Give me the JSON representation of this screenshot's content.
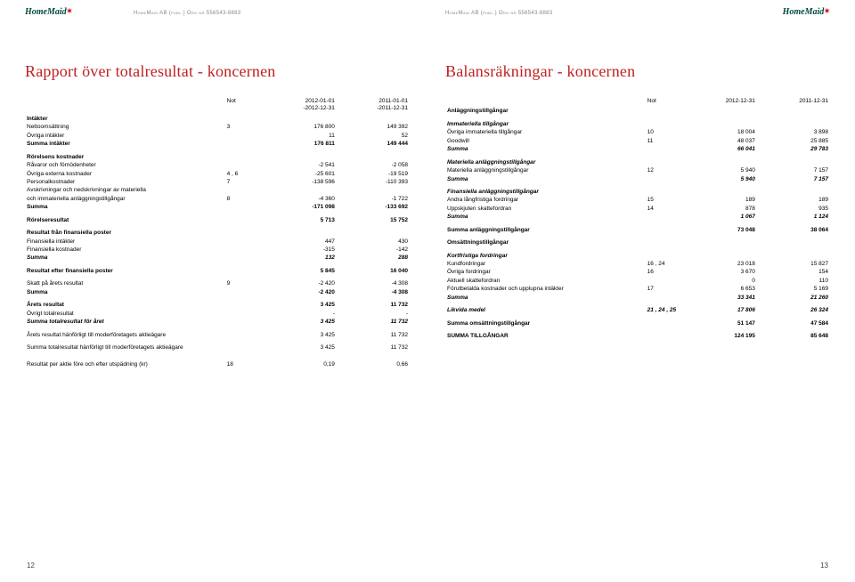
{
  "meta": {
    "company_header": "HomeMaid AB (publ.) Org nr 556543-8883",
    "logo_text": "HomeMaid",
    "page_left_num": "12",
    "page_right_num": "13"
  },
  "colors": {
    "title": "#c02020",
    "logo_green": "#004c3f",
    "logo_x": "#cc0000",
    "runhead": "#888888",
    "text": "#000000",
    "background": "#ffffff"
  },
  "left": {
    "title": "Rapport över totalresultat - koncernen",
    "col_headers": {
      "not": "Not",
      "p1": "2012-01-01\n-2012-12-31",
      "p2": "2011-01-01\n-2011-12-31"
    },
    "rows": [
      {
        "style": "section-head",
        "label": "Intäkter"
      },
      {
        "label": "Nettoomsättning",
        "not": "3",
        "v1": "176 800",
        "v2": "149 392"
      },
      {
        "label": "Övriga intäkter",
        "v1": "11",
        "v2": "52"
      },
      {
        "style": "bold",
        "label": "Summa intäkter",
        "v1": "176 811",
        "v2": "149 444"
      },
      {
        "style": "spacer"
      },
      {
        "style": "section-head",
        "label": "Rörelsens kostnader"
      },
      {
        "label": "Råvaror och förnödenheter",
        "v1": "-2 541",
        "v2": "-2 058"
      },
      {
        "label": "Övriga externa kostnader",
        "not": "4 , 6",
        "v1": "-25 601",
        "v2": "-19 519"
      },
      {
        "label": "Personalkostnader",
        "not": "7",
        "v1": "-138 596",
        "v2": "-110 393"
      },
      {
        "label": "Avskrivningar och nedskrivningar av materiella"
      },
      {
        "label": "och immateriella anläggningstillgångar",
        "not": "8",
        "v1": "-4 360",
        "v2": "-1 722"
      },
      {
        "style": "bold",
        "label": "Summa",
        "v1": "-171 098",
        "v2": "-133 692"
      },
      {
        "style": "spacer"
      },
      {
        "style": "bold",
        "label": "Rörelseresultat",
        "v1": "5 713",
        "v2": "15 752"
      },
      {
        "style": "spacer"
      },
      {
        "style": "section-head",
        "label": "Resultat från finansiella poster"
      },
      {
        "label": "Finansiella intäkter",
        "v1": "447",
        "v2": "430"
      },
      {
        "label": "Finansiella kostnader",
        "v1": "-315",
        "v2": "-142"
      },
      {
        "style": "bolditalic",
        "label": "Summa",
        "v1": "132",
        "v2": "288"
      },
      {
        "style": "spacer"
      },
      {
        "style": "bold",
        "label": "Resultat efter finansiella poster",
        "v1": "5 845",
        "v2": "16 040"
      },
      {
        "style": "spacer"
      },
      {
        "label": "Skatt på årets resultat",
        "not": "9",
        "v1": "-2 420",
        "v2": "-4 308"
      },
      {
        "style": "bold",
        "label": "Summa",
        "v1": "-2 420",
        "v2": "-4 308"
      },
      {
        "style": "spacer"
      },
      {
        "style": "bold",
        "label": "Årets resultat",
        "v1": "3 425",
        "v2": "11 732"
      },
      {
        "label": "Övrigt totalresultat",
        "v1": "-",
        "v2": "-"
      },
      {
        "style": "bolditalic",
        "label": "Summa totalresultat för året",
        "v1": "3 425",
        "v2": "11 732"
      },
      {
        "style": "spacer"
      },
      {
        "label": "Årets resultat hänförligt till moderföretagets aktieägare",
        "v1": "3 425",
        "v2": "11 732"
      },
      {
        "style": "spacer"
      },
      {
        "label": "Summa totalresultat hänförligt till moderföretagets aktieägare",
        "v1": "3 425",
        "v2": "11 732"
      },
      {
        "style": "spacer"
      },
      {
        "style": "spacer"
      },
      {
        "label": "Resultat per aktie före och efter utspädning (kr)",
        "not": "18",
        "v1": "0,19",
        "v2": "0,66"
      }
    ]
  },
  "right": {
    "title": "Balansräkningar - koncernen",
    "col_headers": {
      "not": "Not",
      "p1": "2012-12-31",
      "p2": "2011-12-31"
    },
    "rows": [
      {
        "style": "section-head",
        "label": "Anläggningstillgångar"
      },
      {
        "style": "spacer"
      },
      {
        "style": "bolditalic",
        "label": "Immateriella tillgångar"
      },
      {
        "label": "Övriga immateriella tillgångar",
        "not": "10",
        "v1": "18 004",
        "v2": "3 898"
      },
      {
        "label": "Goodwill",
        "not": "11",
        "v1": "48 037",
        "v2": "25 885"
      },
      {
        "style": "bolditalic",
        "label": "Summa",
        "v1": "66 041",
        "v2": "29 783"
      },
      {
        "style": "spacer"
      },
      {
        "style": "bolditalic",
        "label": "Materiella anläggningstillgångar"
      },
      {
        "label": "Materiella anläggningstillgångar",
        "not": "12",
        "v1": "5 940",
        "v2": "7 157"
      },
      {
        "style": "bolditalic",
        "label": "Summa",
        "v1": "5 940",
        "v2": "7 157"
      },
      {
        "style": "spacer"
      },
      {
        "style": "bolditalic",
        "label": "Finansiella anläggningstillgångar"
      },
      {
        "label": "Andra långfristiga fordringar",
        "not": "15",
        "v1": "189",
        "v2": "189"
      },
      {
        "label": "Uppskjuten skattefordran",
        "not": "14",
        "v1": "878",
        "v2": "935"
      },
      {
        "style": "bolditalic",
        "label": "Summa",
        "v1": "1 067",
        "v2": "1 124"
      },
      {
        "style": "spacer"
      },
      {
        "style": "bold",
        "label": "Summa anläggningstillgångar",
        "v1": "73 048",
        "v2": "38 064"
      },
      {
        "style": "spacer"
      },
      {
        "style": "section-head",
        "label": "Omsättningstillgångar"
      },
      {
        "style": "spacer"
      },
      {
        "style": "bolditalic",
        "label": "Kortfristiga fordringar"
      },
      {
        "label": "Kundfordringar",
        "not": "16 , 24",
        "v1": "23 018",
        "v2": "15 827"
      },
      {
        "label": "Övriga fordringar",
        "not": "16",
        "v1": "3 670",
        "v2": "154"
      },
      {
        "label": "Aktuell skattefordran",
        "v1": "0",
        "v2": "110"
      },
      {
        "label": "Förutbetalda kostnader och upplupna intäkter",
        "not": "17",
        "v1": "6 653",
        "v2": "5 169"
      },
      {
        "style": "bolditalic",
        "label": "Summa",
        "v1": "33 341",
        "v2": "21 260"
      },
      {
        "style": "spacer"
      },
      {
        "style": "bolditalic",
        "label": "Likvida medel",
        "not": "21 , 24 , 25",
        "v1": "17 806",
        "v2": "26 324"
      },
      {
        "style": "spacer"
      },
      {
        "style": "bold",
        "label": "Summa omsättningstillgångar",
        "v1": "51 147",
        "v2": "47 584"
      },
      {
        "style": "spacer"
      },
      {
        "style": "bold",
        "label": "SUMMA TILLGÅNGAR",
        "v1": "124 195",
        "v2": "85 648"
      }
    ]
  }
}
